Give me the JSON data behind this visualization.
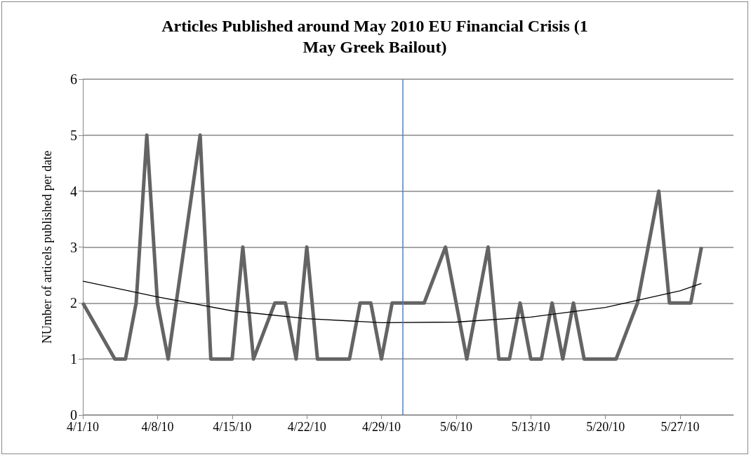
{
  "chart_data": {
    "type": "line",
    "title": "Articles Published around May 2010 EU Financial Crisis (1\nMay Greek Bailout)",
    "ylabel": "NUmber of articels published per date",
    "series": [
      {
        "color": "#646464",
        "x": [
          "2010-04-01",
          "2010-04-04",
          "2010-04-05",
          "2010-04-06",
          "2010-04-07",
          "2010-04-08",
          "2010-04-09",
          "2010-04-12",
          "2010-04-13",
          "2010-04-15",
          "2010-04-16",
          "2010-04-17",
          "2010-04-19",
          "2010-04-20",
          "2010-04-21",
          "2010-04-22",
          "2010-04-23",
          "2010-04-26",
          "2010-04-27",
          "2010-04-28",
          "2010-04-29",
          "2010-04-30",
          "2010-05-03",
          "2010-05-05",
          "2010-05-07",
          "2010-05-09",
          "2010-05-10",
          "2010-05-11",
          "2010-05-12",
          "2010-05-13",
          "2010-05-14",
          "2010-05-15",
          "2010-05-16",
          "2010-05-17",
          "2010-05-18",
          "2010-05-21",
          "2010-05-23",
          "2010-05-25",
          "2010-05-26",
          "2010-05-28",
          "2010-05-29"
        ],
        "values": [
          2,
          1,
          1,
          2,
          5,
          2,
          1,
          5,
          1,
          1,
          3,
          1,
          2,
          2,
          1,
          3,
          1,
          1,
          2,
          2,
          1,
          2,
          2,
          3,
          1,
          3,
          1,
          1,
          2,
          1,
          1,
          2,
          1,
          2,
          1,
          1,
          2,
          4,
          2,
          2,
          3
        ]
      },
      {
        "color": "#000000",
        "x": [
          "2010-04-01",
          "2010-04-08",
          "2010-04-15",
          "2010-04-22",
          "2010-04-29",
          "2010-05-06",
          "2010-05-13",
          "2010-05-20",
          "2010-05-27",
          "2010-05-29"
        ],
        "values": [
          2.39,
          2.11,
          1.86,
          1.72,
          1.65,
          1.66,
          1.75,
          1.92,
          2.22,
          2.35
        ]
      }
    ],
    "xlim": [
      "2010-04-01",
      "2010-06-01"
    ],
    "xticks": [
      {
        "value": "2010-04-01",
        "label": "4/1/10"
      },
      {
        "value": "2010-04-08",
        "label": "4/8/10"
      },
      {
        "value": "2010-04-15",
        "label": "4/15/10"
      },
      {
        "value": "2010-04-22",
        "label": "4/22/10"
      },
      {
        "value": "2010-04-29",
        "label": "4/29/10"
      },
      {
        "value": "2010-05-06",
        "label": "5/6/10"
      },
      {
        "value": "2010-05-13",
        "label": "5/13/10"
      },
      {
        "value": "2010-05-20",
        "label": "5/20/10"
      },
      {
        "value": "2010-05-27",
        "label": "5/27/10"
      }
    ],
    "ylim": [
      0,
      6
    ],
    "yticks": [
      0,
      1,
      2,
      3,
      4,
      5,
      6
    ],
    "ref_lines": [
      {
        "axis": "x",
        "value": "2010-05-01",
        "color": "#4f81bd",
        "line_style": "solid"
      }
    ],
    "grid": "y",
    "marker": "none"
  }
}
